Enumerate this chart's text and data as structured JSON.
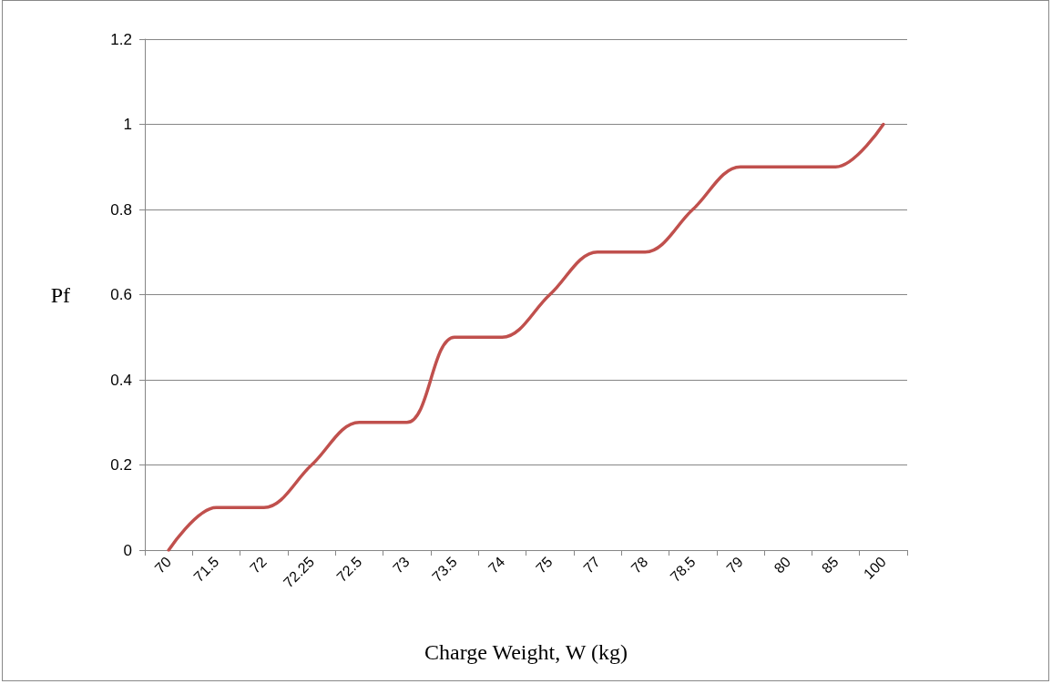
{
  "chart_data": {
    "type": "line",
    "xlabel": "Charge Weight, W (kg)",
    "ylabel": "Pf",
    "categories": [
      "70",
      "71.5",
      "72",
      "72.25",
      "72.5",
      "73",
      "73.5",
      "74",
      "75",
      "77",
      "78",
      "78.5",
      "79",
      "80",
      "85",
      "100"
    ],
    "series": [
      {
        "color": "#c0504d",
        "values": [
          0,
          0.1,
          0.1,
          0.2,
          0.3,
          0.3,
          0.5,
          0.5,
          0.6,
          0.7,
          0.7,
          0.8,
          0.9,
          0.9,
          0.9,
          1
        ]
      }
    ],
    "ylim": [
      0,
      1.2
    ],
    "yticks": [
      0,
      0.2,
      0.4,
      0.6,
      0.8,
      1,
      1.2
    ],
    "grid": "y",
    "marker": "none",
    "line_style": "solid"
  }
}
